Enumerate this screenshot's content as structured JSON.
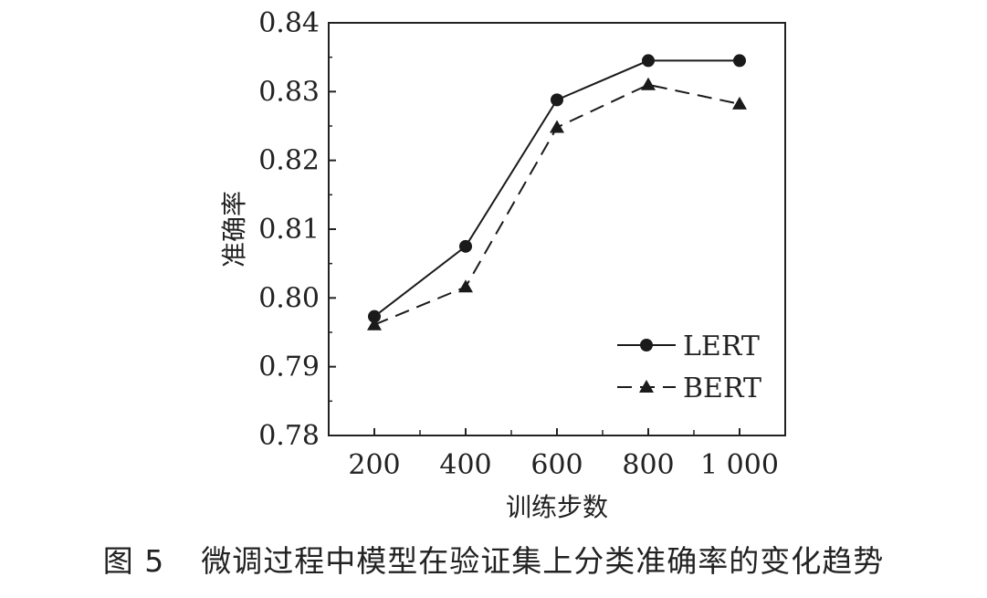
{
  "chart_data": {
    "type": "line",
    "xlabel": "训练步数",
    "ylabel": "准确率",
    "x": [
      200,
      400,
      600,
      800,
      1000
    ],
    "x_tick_labels": [
      "200",
      "400",
      "600",
      "800",
      "1 000"
    ],
    "xlim": [
      100,
      1100
    ],
    "ylim": [
      0.78,
      0.84
    ],
    "y_ticks": [
      0.78,
      0.79,
      0.8,
      0.81,
      0.82,
      0.83,
      0.84
    ],
    "y_tick_labels": [
      "0.78",
      "0.79",
      "0.80",
      "0.81",
      "0.82",
      "0.83",
      "0.84"
    ],
    "grid": false,
    "legend_position": "bottom-right",
    "series": [
      {
        "name": "LERT",
        "values": [
          0.7973,
          0.8075,
          0.8288,
          0.8345,
          0.8345
        ],
        "line": "solid",
        "marker": "circle",
        "color": "#1a1a1a"
      },
      {
        "name": "BERT",
        "values": [
          0.7961,
          0.8016,
          0.8248,
          0.831,
          0.8282
        ],
        "line": "dashed",
        "marker": "triangle",
        "color": "#1a1a1a"
      }
    ]
  },
  "caption": {
    "figure_number": "图 5",
    "text": "微调过程中模型在验证集上分类准确率的变化趋势"
  }
}
